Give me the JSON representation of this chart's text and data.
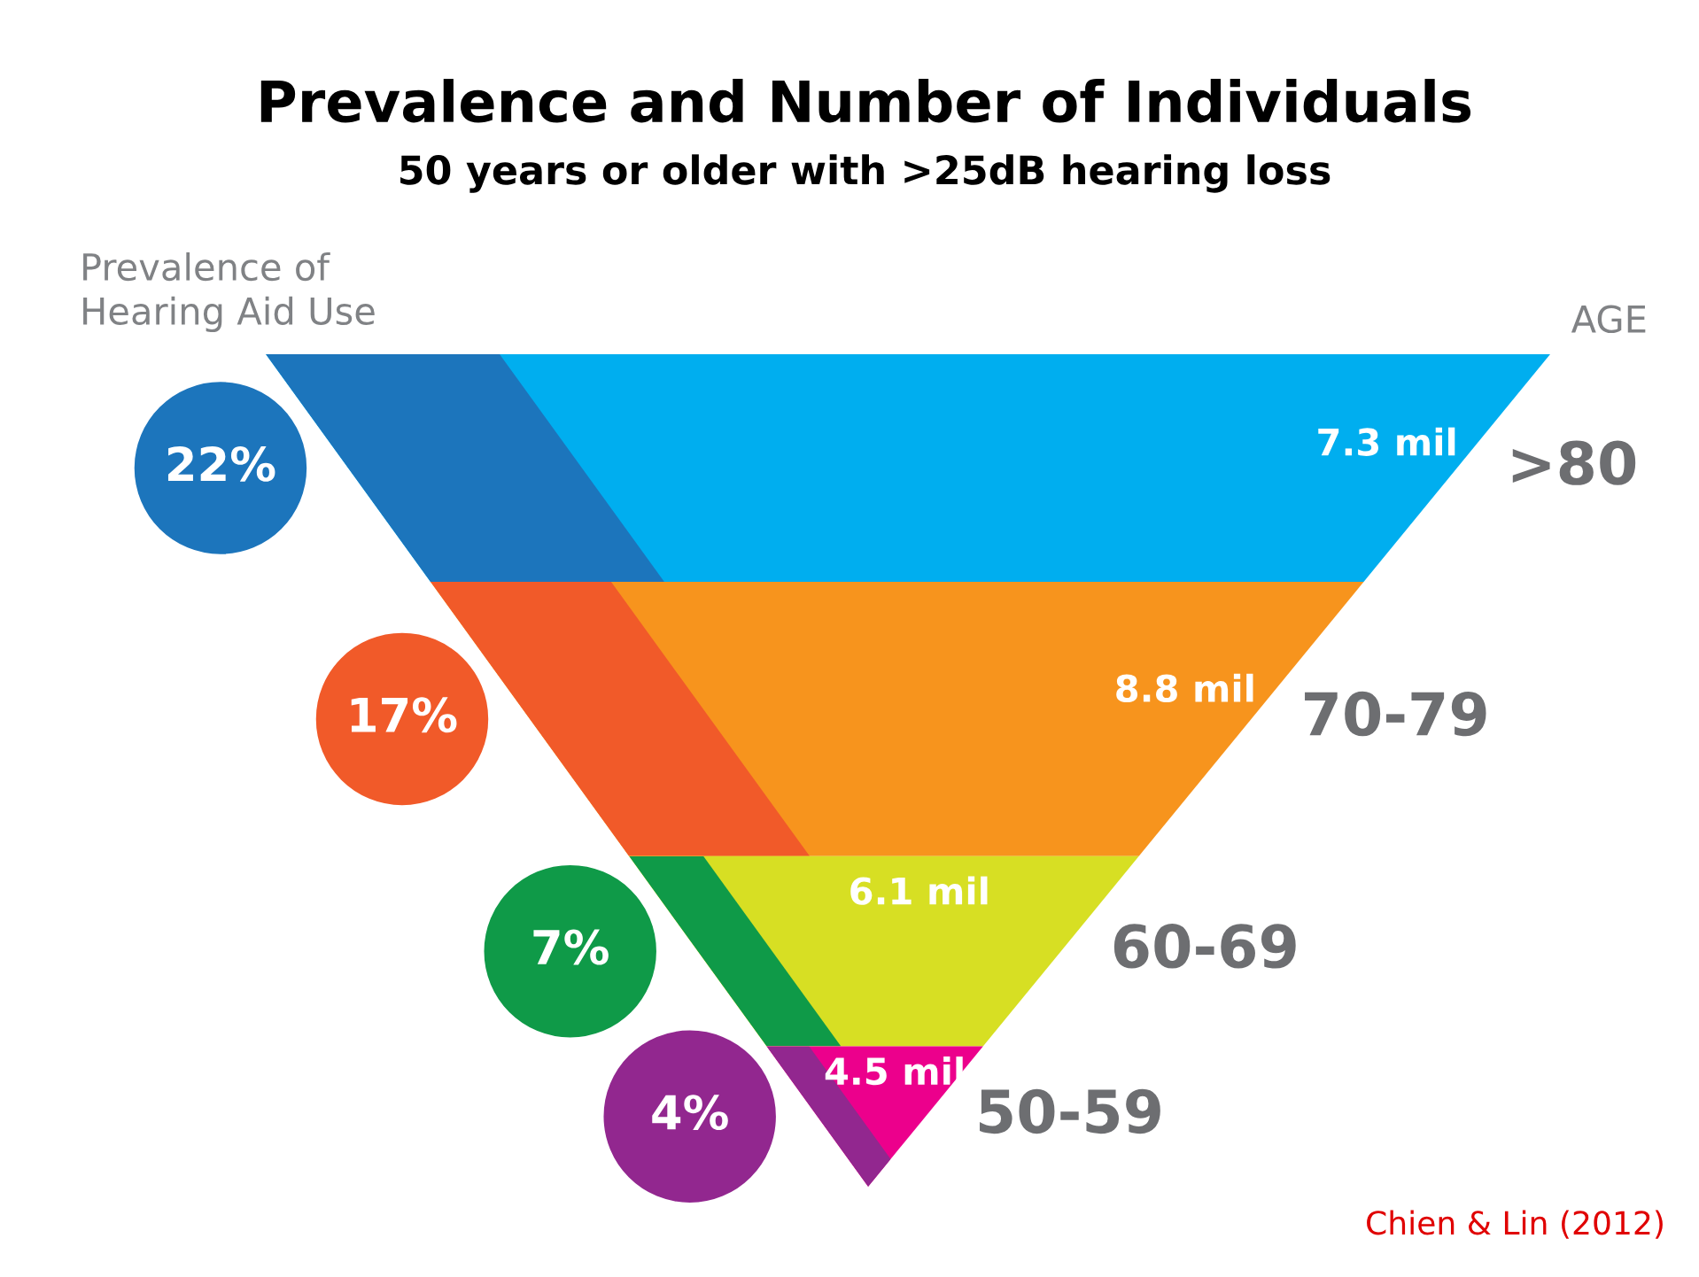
{
  "chart_data": {
    "type": "other",
    "title": "Prevalence and Number of Individuals",
    "subtitle": "50 years or older with >25dB hearing loss",
    "ylabel": "AGE",
    "categories": [
      ">80",
      "70-79",
      "60-69",
      "50-59"
    ],
    "series": [
      {
        "name": "Prevalence of\nHearing Aid Use",
        "colors": [
          "#1c75bc",
          "#f15a29",
          "#0f9a48",
          "#92278f"
        ],
        "values": [
          22,
          17,
          7,
          4
        ],
        "value_labels": [
          "22%",
          "17%",
          "7%",
          "4%"
        ]
      },
      {
        "colors": [
          "#00aeef",
          "#f7941d",
          "#d7df23",
          "#ec008c"
        ],
        "values": [
          7.3,
          8.8,
          6.1,
          4.5
        ],
        "value_labels": [
          "7.3 mil",
          "8.8 mil",
          "6.1 mil",
          "4.5 mil"
        ]
      }
    ],
    "annotations": [
      "Chien & Lin (2012)"
    ]
  }
}
